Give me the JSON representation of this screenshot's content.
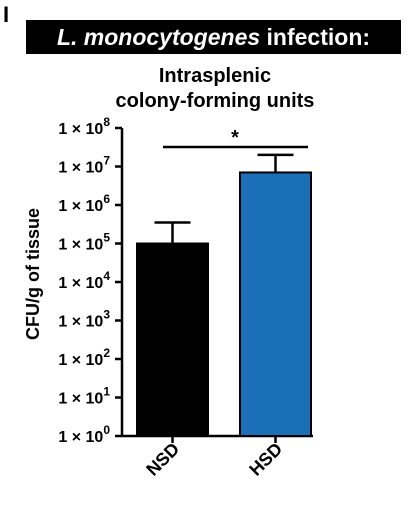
{
  "panel_letter": "I",
  "banner": {
    "italic": "L. monocytogenes",
    "rest": " infection:"
  },
  "chart_data": {
    "type": "bar",
    "title_lines": [
      "Intrasplenic",
      "colony-forming units"
    ],
    "ylabel": "CFU/g of tissue",
    "xlabel": "",
    "y_scale": "log10",
    "ylim": [
      1,
      100000000
    ],
    "yticks": [
      {
        "value": 1,
        "exp": "0"
      },
      {
        "value": 10,
        "exp": "1"
      },
      {
        "value": 100,
        "exp": "2"
      },
      {
        "value": 1000,
        "exp": "3"
      },
      {
        "value": 10000,
        "exp": "4"
      },
      {
        "value": 100000,
        "exp": "5"
      },
      {
        "value": 1000000,
        "exp": "6"
      },
      {
        "value": 10000000,
        "exp": "7"
      },
      {
        "value": 100000000,
        "exp": "8"
      }
    ],
    "tick_prefix": "1 × 10",
    "categories": [
      "NSD",
      "HSD"
    ],
    "values": [
      100000,
      7000000
    ],
    "error_upper": [
      350000,
      20000000
    ],
    "colors": [
      "#000000",
      "#1a6fb8"
    ],
    "significance": {
      "label": "*",
      "between": [
        "NSD",
        "HSD"
      ]
    },
    "grid": false,
    "legend": "none"
  }
}
